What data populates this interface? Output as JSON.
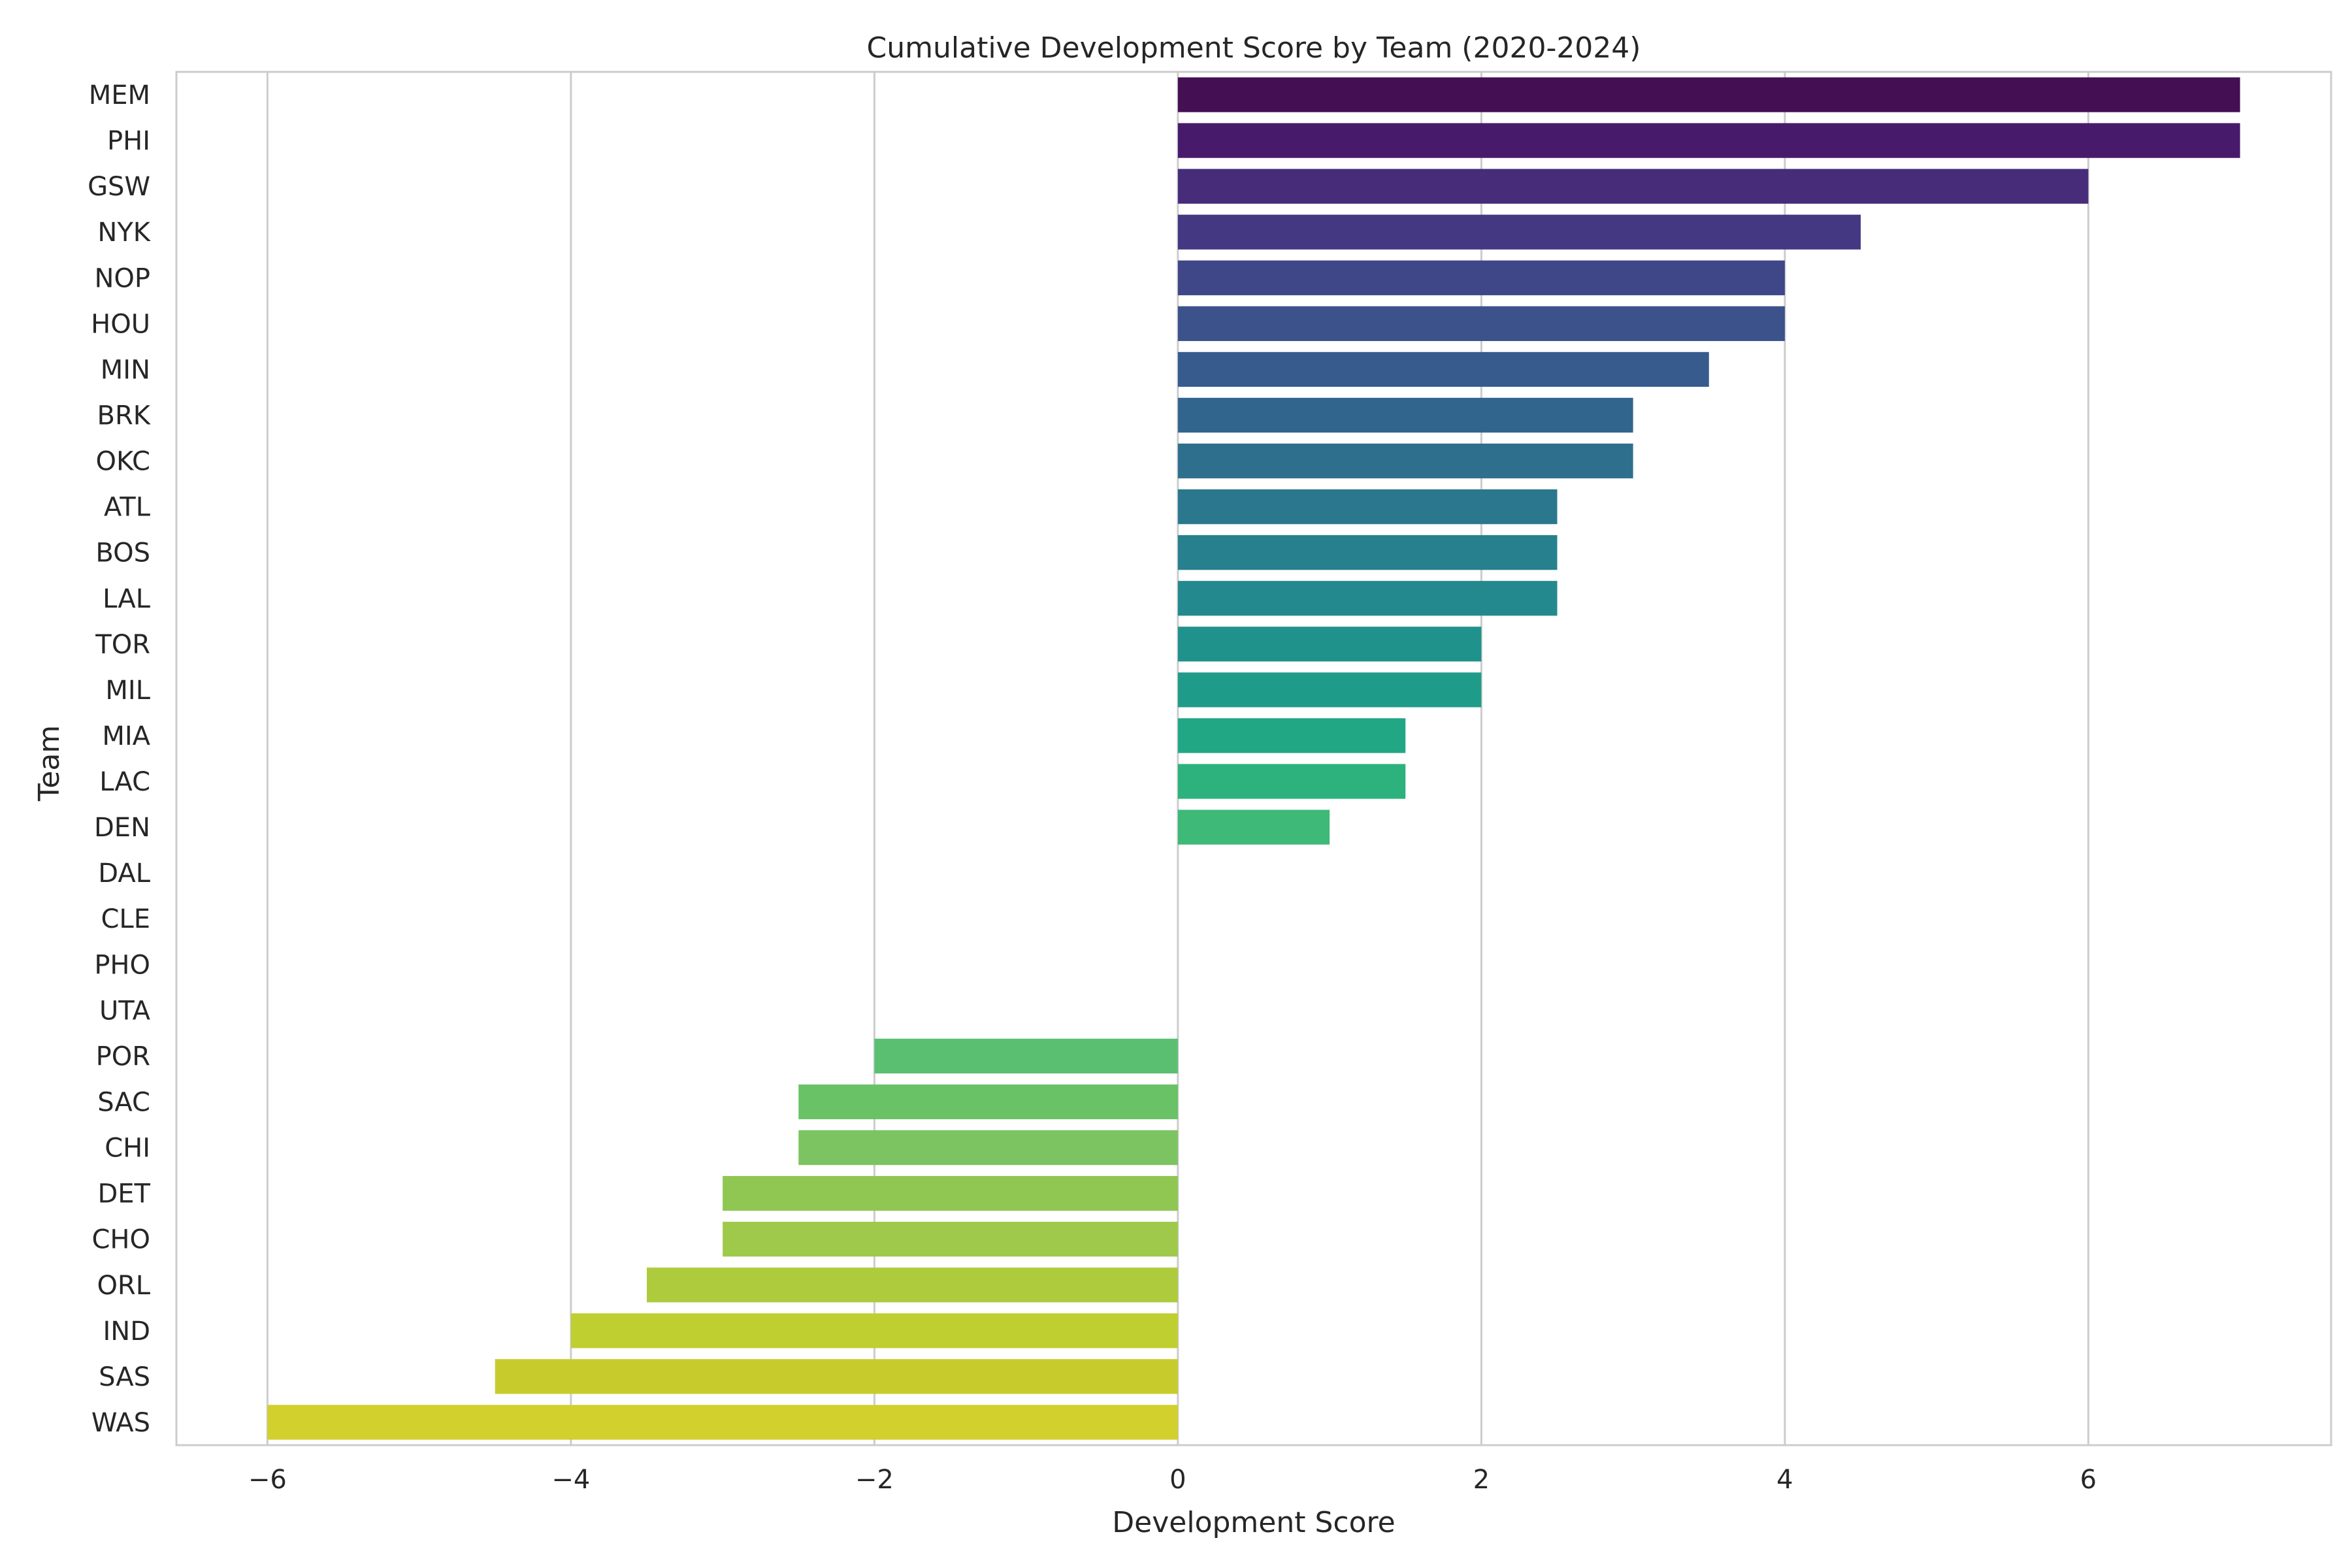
{
  "chart_data": {
    "type": "bar",
    "orientation": "horizontal",
    "title": "Cumulative Development Score by Team (2020-2024)",
    "xlabel": "Development Score",
    "ylabel": "Team",
    "xlim": [
      -6.6,
      7.6
    ],
    "xticks": [
      -6,
      -4,
      -2,
      0,
      2,
      4,
      6
    ],
    "xtick_labels": [
      "−6",
      "−4",
      "−2",
      "0",
      "2",
      "4",
      "6"
    ],
    "grid": "vertical",
    "categories": [
      "MEM",
      "PHI",
      "GSW",
      "NYK",
      "NOP",
      "HOU",
      "MIN",
      "BRK",
      "OKC",
      "ATL",
      "BOS",
      "LAL",
      "TOR",
      "MIL",
      "MIA",
      "LAC",
      "DEN",
      "DAL",
      "CLE",
      "PHO",
      "UTA",
      "POR",
      "SAC",
      "CHI",
      "DET",
      "CHO",
      "ORL",
      "IND",
      "SAS",
      "WAS"
    ],
    "values": [
      7,
      7,
      6,
      4.5,
      4,
      4,
      3.5,
      3,
      3,
      2.5,
      2.5,
      2.5,
      2,
      2,
      1.5,
      1.5,
      1,
      0,
      0,
      0,
      0,
      -2,
      -2.5,
      -2.5,
      -3,
      -3,
      -3.5,
      -4,
      -4.5,
      -6
    ],
    "colors": [
      "#450f54",
      "#481a6c",
      "#472c7a",
      "#453882",
      "#3f4788",
      "#3b528b",
      "#375b8d",
      "#32658e",
      "#2e6f8e",
      "#2b788e",
      "#27808e",
      "#23898e",
      "#1f928c",
      "#1f9c89",
      "#22a785",
      "#2db27d",
      "#3eb977",
      "#52c569",
      "#68cd5b",
      "#80d34e",
      "#98d83e",
      "#5bbf72",
      "#69c266",
      "#7cc461",
      "#8fc752",
      "#9fc94a",
      "#aecb3e",
      "#bfcf30",
      "#c7cc2c",
      "#d2d02c"
    ],
    "palette": "viridis"
  }
}
